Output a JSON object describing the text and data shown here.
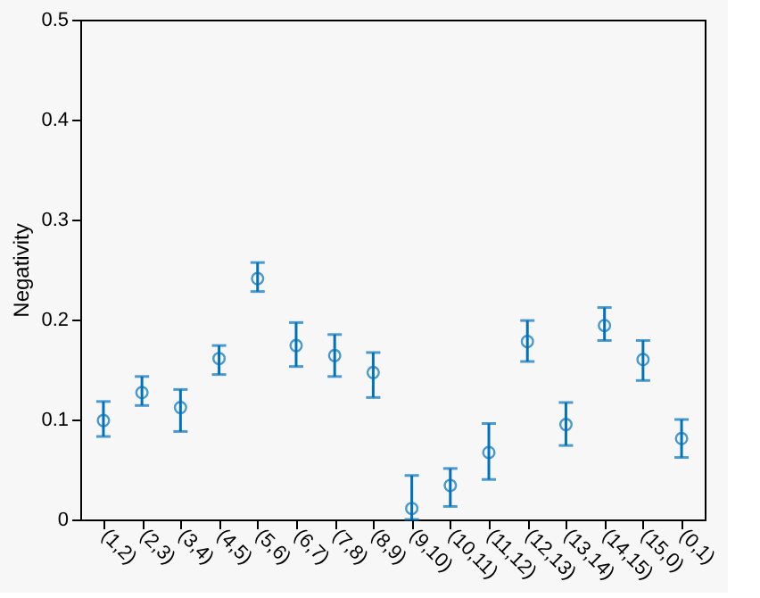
{
  "chart_data": {
    "type": "scatter",
    "ylabel": "Negativity",
    "categories": [
      "(1,2)",
      "(2,3)",
      "(3,4)",
      "(4,5)",
      "(5,6)",
      "(6,7)",
      "(7,8)",
      "(8,9)",
      "(9,10)",
      "(10,11)",
      "(11,12)",
      "(12,13)",
      "(13,14)",
      "(14,15)",
      "(15,0)",
      "(0,1)"
    ],
    "series": [
      {
        "color": "#0072bd",
        "values": [
          0.099,
          0.127,
          0.112,
          0.161,
          0.241,
          0.174,
          0.164,
          0.147,
          0.011,
          0.034,
          0.067,
          0.178,
          0.095,
          0.194,
          0.16,
          0.081
        ],
        "errors": [
          [
            0.083,
            0.118
          ],
          [
            0.114,
            0.143
          ],
          [
            0.088,
            0.13
          ],
          [
            0.145,
            0.174
          ],
          [
            0.228,
            0.257
          ],
          [
            0.153,
            0.197
          ],
          [
            0.143,
            0.185
          ],
          [
            0.122,
            0.167
          ],
          [
            0.0,
            0.044
          ],
          [
            0.013,
            0.051
          ],
          [
            0.04,
            0.096
          ],
          [
            0.158,
            0.199
          ],
          [
            0.074,
            0.117
          ],
          [
            0.179,
            0.212
          ],
          [
            0.139,
            0.179
          ],
          [
            0.062,
            0.1
          ]
        ]
      }
    ],
    "ylim": [
      0,
      0.5
    ],
    "yticks": [
      0,
      0.1,
      0.2,
      0.3,
      0.4,
      0.5
    ],
    "grid": false,
    "marker": "circle"
  }
}
